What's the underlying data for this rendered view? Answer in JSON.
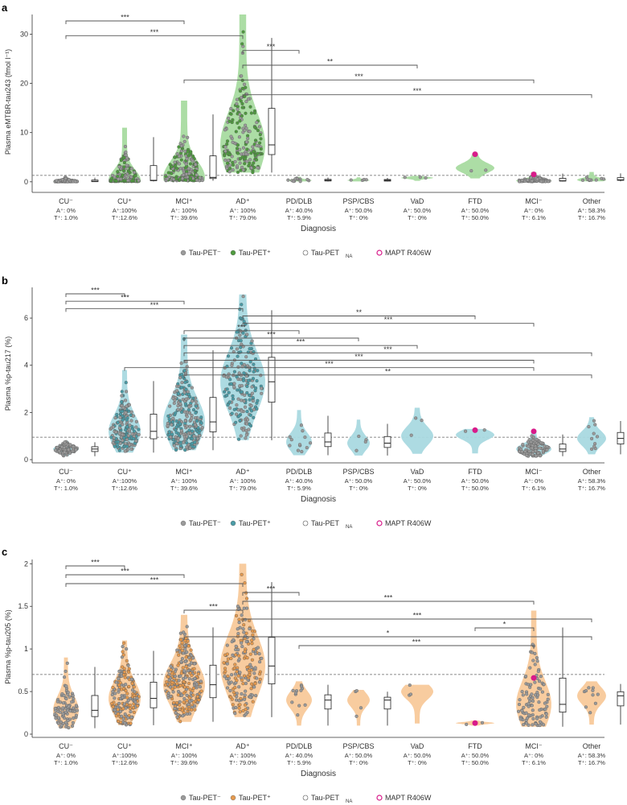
{
  "colors": {
    "negative_fill": "#9a9a9a",
    "mapt": "#d81b8a",
    "panels": [
      "#a8dba0",
      "#a9d9e0",
      "#f8c99a"
    ],
    "points": [
      "#4f9a3f",
      "#4a9ba6",
      "#e59a4f"
    ],
    "sig_line": "#555555"
  },
  "groups": [
    {
      "name": "CU⁻",
      "a": "A⁺: 0%",
      "t": "T⁺: 1.0%"
    },
    {
      "name": "CU⁺",
      "a": "A⁺:100%",
      "t": "T⁺:12.6%"
    },
    {
      "name": "MCI⁺",
      "a": "A⁺: 100%",
      "t": "T⁺: 39.6%"
    },
    {
      "name": "AD⁺",
      "a": "A⁺: 100%",
      "t": "T⁺: 79.0%"
    },
    {
      "name": "PD/DLB",
      "a": "A⁺: 40.0%",
      "t": "T⁺: 5.9%"
    },
    {
      "name": "PSP/CBS",
      "a": "A⁺: 50.0%",
      "t": "T⁺: 0%"
    },
    {
      "name": "VaD",
      "a": "A⁺: 50.0%",
      "t": "T⁺: 0%"
    },
    {
      "name": "FTD",
      "a": "A⁺: 50.0%",
      "t": "T⁺: 50.0%"
    },
    {
      "name": "MCI⁻",
      "a": "A⁺: 0%",
      "t": "T⁺: 6.1%"
    },
    {
      "name": "Other",
      "a": "A⁺: 58.3%",
      "t": "T⁺: 16.7%"
    }
  ],
  "legend": [
    "Tau-PET⁻",
    "Tau-PET⁺",
    "Tau-PET",
    "MAPT R406W"
  ],
  "legend_na_sub": "NA",
  "chart_data": [
    {
      "type": "violin",
      "panel": "a",
      "ylabel": "Plasma eMTBR-tau243 (fmol l⁻¹)",
      "xlabel": "Diagnosis",
      "ylim": [
        -1.5,
        34
      ],
      "yticks": [
        0,
        10,
        20,
        30
      ],
      "threshold": 1.3,
      "categories": [
        "CU⁻",
        "CU⁺",
        "MCI⁺",
        "AD⁺",
        "PD/DLB",
        "PSP/CBS",
        "VaD",
        "FTD",
        "MCI⁻",
        "Other"
      ],
      "medians": [
        0.1,
        0.3,
        0.9,
        7.5,
        0.3,
        0.3,
        0.8,
        2.8,
        0.2,
        0.4
      ],
      "maxima": [
        1.0,
        11.0,
        16.5,
        34.0,
        1.0,
        0.9,
        1.2,
        5.6,
        2.0,
        2.0
      ],
      "mapt_values": [
        null,
        null,
        null,
        null,
        null,
        null,
        null,
        5.6,
        1.5,
        null
      ],
      "significance": [
        {
          "g1": 0,
          "g2": 2,
          "label": "***"
        },
        {
          "g1": 0,
          "g2": 3,
          "label": "***"
        },
        {
          "g1": 3,
          "g2": 4,
          "label": "***"
        },
        {
          "g1": 3,
          "g2": 6,
          "label": "**"
        },
        {
          "g1": 2,
          "g2": 8,
          "label": "***"
        },
        {
          "g1": 3,
          "g2": 9,
          "label": "***"
        }
      ]
    },
    {
      "type": "violin",
      "panel": "b",
      "ylabel": "Plasma %p-tau217 (%)",
      "xlabel": "Diagnosis",
      "ylim": [
        0,
        7.3
      ],
      "yticks": [
        0,
        2,
        4,
        6
      ],
      "threshold": 0.95,
      "categories": [
        "CU⁻",
        "CU⁺",
        "MCI⁺",
        "AD⁺",
        "PD/DLB",
        "PSP/CBS",
        "VaD",
        "FTD",
        "MCI⁻",
        "Other"
      ],
      "medians": [
        0.45,
        1.2,
        1.6,
        3.3,
        0.75,
        0.7,
        1.0,
        1.05,
        0.45,
        0.9
      ],
      "maxima": [
        0.8,
        3.8,
        5.3,
        7.0,
        2.1,
        1.7,
        2.2,
        1.3,
        1.2,
        1.8
      ],
      "mapt_values": [
        null,
        null,
        null,
        null,
        null,
        null,
        null,
        1.25,
        1.2,
        null
      ],
      "significance": [
        {
          "g1": 0,
          "g2": 1,
          "label": "***"
        },
        {
          "g1": 0,
          "g2": 2,
          "label": "***"
        },
        {
          "g1": 0,
          "g2": 3,
          "label": "***"
        },
        {
          "g1": 3,
          "g2": 7,
          "label": "**"
        },
        {
          "g1": 3,
          "g2": 8,
          "label": "***"
        },
        {
          "g1": 2,
          "g2": 4,
          "label": "***"
        },
        {
          "g1": 2,
          "g2": 5,
          "label": "***"
        },
        {
          "g1": 2,
          "g2": 6,
          "label": "***"
        },
        {
          "g1": 2,
          "g2": 9,
          "label": "***"
        },
        {
          "g1": 2,
          "g2": 8,
          "label": "***"
        },
        {
          "g1": 1,
          "g2": 8,
          "label": "***"
        },
        {
          "g1": 2,
          "g2": 9,
          "label": "**"
        }
      ]
    },
    {
      "type": "violin",
      "panel": "c",
      "ylabel": "Plasma %p-tau205 (%)",
      "xlabel": "Diagnosis",
      "ylim": [
        0,
        2.05
      ],
      "yticks": [
        0,
        0.5,
        1.0,
        1.5,
        2.0
      ],
      "threshold": 0.7,
      "categories": [
        "CU⁻",
        "CU⁺",
        "MCI⁺",
        "AD⁺",
        "PD/DLB",
        "PSP/CBS",
        "VaD",
        "FTD",
        "MCI⁻",
        "Other"
      ],
      "medians": [
        0.28,
        0.42,
        0.58,
        0.8,
        0.4,
        0.4,
        0.5,
        0.13,
        0.35,
        0.45
      ],
      "maxima": [
        0.9,
        1.1,
        1.4,
        2.0,
        0.62,
        0.52,
        0.58,
        0.16,
        1.45,
        0.62
      ],
      "mapt_values": [
        null,
        null,
        null,
        null,
        null,
        null,
        null,
        0.13,
        0.66,
        null
      ],
      "significance": [
        {
          "g1": 0,
          "g2": 1,
          "label": "***"
        },
        {
          "g1": 0,
          "g2": 2,
          "label": "***"
        },
        {
          "g1": 0,
          "g2": 3,
          "label": "***"
        },
        {
          "g1": 3,
          "g2": 4,
          "label": "***"
        },
        {
          "g1": 3,
          "g2": 8,
          "label": "***"
        },
        {
          "g1": 2,
          "g2": 3,
          "label": "***"
        },
        {
          "g1": 3,
          "g2": 9,
          "label": "***"
        },
        {
          "g1": 7,
          "g2": 8,
          "label": "*"
        },
        {
          "g1": 2,
          "g2": 9,
          "label": "*"
        },
        {
          "g1": 4,
          "g2": 8,
          "label": "***"
        }
      ]
    }
  ]
}
